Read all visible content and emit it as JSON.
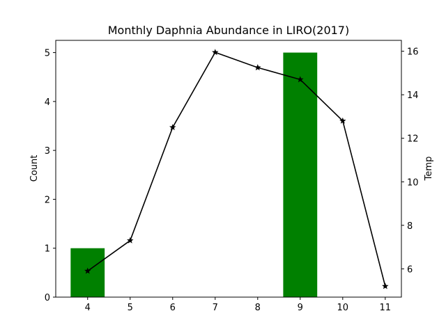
{
  "chart_data": {
    "type": "bar",
    "title": "Monthly Daphnia Abundance in LIRO(2017)",
    "xlabel": "",
    "ylabel": "Count",
    "ylabel_right": "Temp",
    "x_ticks": [
      "4",
      "5",
      "6",
      "7",
      "8",
      "9",
      "10",
      "11"
    ],
    "ylim": [
      0,
      5.25
    ],
    "y_ticks": [
      "0",
      "1",
      "2",
      "3",
      "4",
      "5"
    ],
    "y2lim": [
      4.7,
      16.5
    ],
    "y2_ticks": [
      "6",
      "8",
      "10",
      "12",
      "14",
      "16"
    ],
    "bars": {
      "color": "#008000",
      "x": [
        4,
        9
      ],
      "values": [
        1,
        5
      ]
    },
    "line": {
      "color": "#000000",
      "marker": "star",
      "axis": "right",
      "x": [
        4,
        5,
        6,
        7,
        8,
        9,
        10,
        11
      ],
      "values": [
        5.9,
        7.3,
        12.5,
        15.95,
        15.25,
        14.7,
        12.8,
        5.2
      ]
    }
  }
}
